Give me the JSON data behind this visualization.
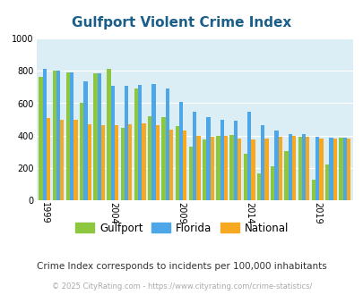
{
  "title": "Gulfport Violent Crime Index",
  "subtitle": "Crime Index corresponds to incidents per 100,000 inhabitants",
  "footer": "© 2025 CityRating.com - https://www.cityrating.com/crime-statistics/",
  "years": [
    1999,
    2000,
    2001,
    2002,
    2003,
    2004,
    2005,
    2006,
    2007,
    2008,
    2009,
    2010,
    2011,
    2012,
    2013,
    2014,
    2015,
    2016,
    2017,
    2018,
    2019,
    2020,
    2021
  ],
  "gulfport": [
    760,
    800,
    790,
    600,
    785,
    810,
    450,
    690,
    520,
    515,
    460,
    335,
    375,
    400,
    405,
    290,
    165,
    210,
    305,
    395,
    130,
    220,
    390
  ],
  "florida": [
    810,
    800,
    790,
    735,
    785,
    710,
    705,
    715,
    720,
    690,
    610,
    545,
    515,
    500,
    490,
    545,
    465,
    430,
    410,
    410,
    395,
    390,
    390
  ],
  "national": [
    510,
    500,
    500,
    470,
    465,
    465,
    470,
    475,
    465,
    435,
    430,
    400,
    395,
    400,
    380,
    375,
    380,
    395,
    400,
    395,
    380,
    385,
    385
  ],
  "gulfport_color": "#8dc63f",
  "florida_color": "#4da6e8",
  "national_color": "#f5a820",
  "plot_bg": "#dceef5",
  "ylim": [
    0,
    1000
  ],
  "yticks": [
    0,
    200,
    400,
    600,
    800,
    1000
  ],
  "xtick_years": [
    1999,
    2004,
    2009,
    2014,
    2019
  ],
  "title_color": "#1a5f8a",
  "subtitle_color": "#333333",
  "footer_color": "#aaaaaa"
}
